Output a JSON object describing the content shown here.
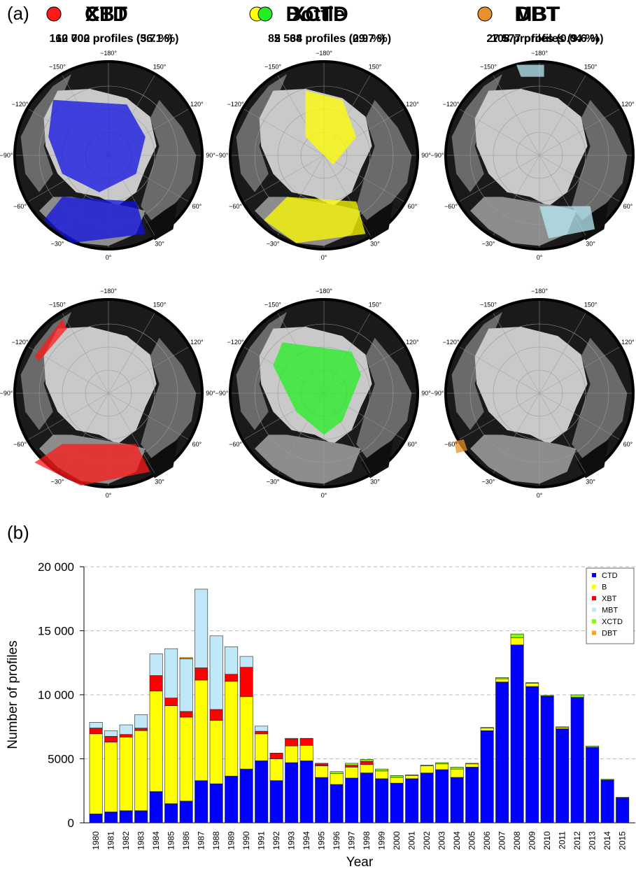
{
  "panels": {
    "a_label": "(a)",
    "b_label": "(b)"
  },
  "maps": [
    {
      "name": "CTD",
      "profiles": "162 002 profiles (56.1 %)",
      "color": "#1010e0",
      "region": "ctd"
    },
    {
      "name": "Bottle",
      "profiles": "85 568 profiles (29.7 %)",
      "color": "#ffff00",
      "region": "bottle"
    },
    {
      "name": "MBT",
      "profiles": "27 577 profiles (9.6 %)",
      "color": "#b8ecf4",
      "region": "mbt"
    },
    {
      "name": "XBT",
      "profiles": "10 700 profiles (3.7 %)",
      "color": "#ff1a1a",
      "region": "xbt"
    },
    {
      "name": "XCTD",
      "profiles": "2 534 profiles (0.9 %)",
      "color": "#22ee22",
      "region": "xctd"
    },
    {
      "name": "DBT",
      "profiles": "108 profiles (0.04 %)",
      "color": "#e8902a",
      "region": "dbt"
    }
  ],
  "map_axis_labels": [
    "−180°",
    "150°",
    "120°",
    "90°",
    "60°",
    "30°",
    "0°",
    "−30°",
    "−60°",
    "−90°",
    "−120°",
    "−150°"
  ],
  "chart_data": {
    "type": "bar",
    "stacked": true,
    "xlabel": "Year",
    "ylabel": "Number of profiles",
    "ylim": [
      0,
      20000
    ],
    "yticks": [
      0,
      5000,
      10000,
      15000,
      20000
    ],
    "ytick_labels": [
      "0",
      "5000",
      "10 000",
      "15 000",
      "20 000"
    ],
    "grid": "horizontal dashed",
    "legend_position": "top-right",
    "categories": [
      "1980",
      "1981",
      "1982",
      "1983",
      "1984",
      "1985",
      "1986",
      "1987",
      "1988",
      "1989",
      "1990",
      "1991",
      "1992",
      "1993",
      "1994",
      "1995",
      "1996",
      "1997",
      "1998",
      "1999",
      "2000",
      "2001",
      "2002",
      "2003",
      "2004",
      "2005",
      "2006",
      "2007",
      "2008",
      "2009",
      "2010",
      "2011",
      "2012",
      "2013",
      "2014",
      "2015"
    ],
    "series": [
      {
        "name": "CTD",
        "color": "#0000ff",
        "values": [
          700,
          850,
          950,
          950,
          2450,
          1500,
          1700,
          3300,
          3050,
          3650,
          4200,
          4850,
          3300,
          4700,
          4850,
          3550,
          3000,
          3500,
          3900,
          3450,
          3100,
          3450,
          3900,
          4150,
          3550,
          4350,
          7200,
          11000,
          13900,
          10650,
          9900,
          7350,
          9800,
          5900,
          3350,
          1950
        ]
      },
      {
        "name": "B",
        "color": "#ffff00",
        "values": [
          6250,
          5450,
          5750,
          6250,
          7850,
          7650,
          6550,
          7850,
          4950,
          7400,
          5650,
          2100,
          1700,
          1300,
          1200,
          900,
          850,
          850,
          650,
          600,
          450,
          250,
          550,
          450,
          650,
          250,
          200,
          250,
          550,
          250,
          0,
          100,
          0,
          0,
          0,
          0
        ]
      },
      {
        "name": "XBT",
        "color": "#ff0000",
        "values": [
          450,
          450,
          200,
          200,
          1200,
          600,
          450,
          950,
          850,
          550,
          2300,
          200,
          450,
          550,
          550,
          150,
          0,
          150,
          250,
          0,
          0,
          0,
          0,
          0,
          0,
          0,
          0,
          0,
          0,
          0,
          0,
          0,
          0,
          0,
          0,
          0
        ]
      },
      {
        "name": "MBT",
        "color": "#c0e8f8",
        "values": [
          450,
          450,
          750,
          1050,
          1700,
          3850,
          4100,
          6150,
          5750,
          2150,
          850,
          400,
          0,
          0,
          0,
          0,
          0,
          0,
          0,
          0,
          0,
          0,
          0,
          0,
          0,
          0,
          0,
          0,
          0,
          0,
          0,
          0,
          0,
          0,
          0,
          0
        ]
      },
      {
        "name": "XCTD",
        "color": "#80ff00",
        "values": [
          0,
          0,
          0,
          0,
          0,
          0,
          0,
          0,
          0,
          0,
          0,
          0,
          0,
          50,
          0,
          50,
          150,
          150,
          150,
          150,
          150,
          50,
          50,
          100,
          150,
          50,
          50,
          100,
          300,
          50,
          50,
          50,
          200,
          100,
          50,
          50
        ]
      },
      {
        "name": "DBT",
        "color": "#ffa020",
        "values": [
          0,
          0,
          0,
          0,
          0,
          0,
          100,
          0,
          0,
          0,
          0,
          0,
          0,
          0,
          0,
          0,
          0,
          0,
          0,
          0,
          0,
          0,
          0,
          0,
          0,
          0,
          0,
          0,
          0,
          0,
          0,
          0,
          0,
          0,
          0,
          0
        ]
      }
    ]
  }
}
